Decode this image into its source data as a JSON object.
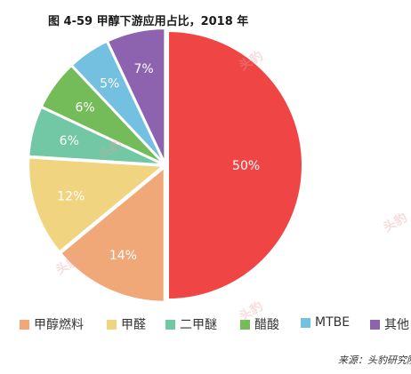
{
  "title": "图 4-59  甲醇下游应用占比，2018 年",
  "source": "来源：头豹研究院",
  "watermark_text": "头豹",
  "chart_data": {
    "type": "pie",
    "slices": [
      {
        "name": "",
        "value": 50,
        "label": "50%",
        "color": "#f04545"
      },
      {
        "name": "甲醇燃料",
        "value": 14,
        "label": "14%",
        "color": "#f0a878"
      },
      {
        "name": "甲醛",
        "value": 12,
        "label": "12%",
        "color": "#f0d480"
      },
      {
        "name": "二甲醚",
        "value": 6,
        "label": "6%",
        "color": "#72c8a4"
      },
      {
        "name": "醋酸",
        "value": 6,
        "label": "6%",
        "color": "#74bb5a"
      },
      {
        "name": "MTBE",
        "value": 5,
        "label": "5%",
        "color": "#74c0e0"
      },
      {
        "name": "其他",
        "value": 7,
        "label": "7%",
        "color": "#8d62ae"
      }
    ],
    "legend_position": "bottom"
  }
}
